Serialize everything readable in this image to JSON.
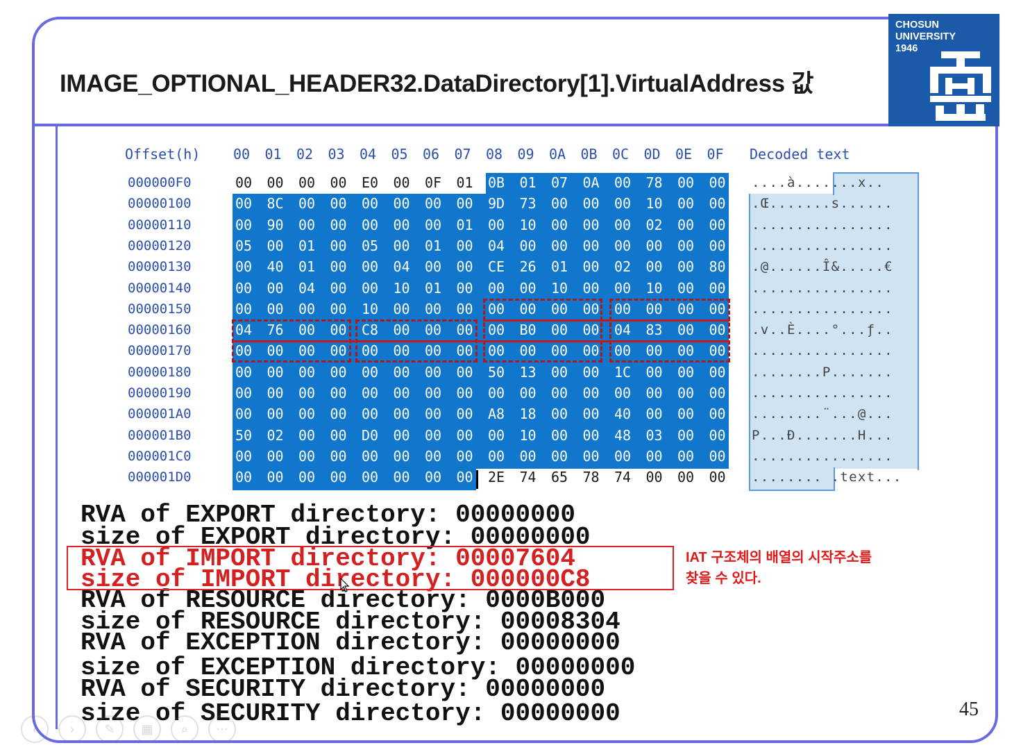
{
  "slide": {
    "title": "IMAGE_OPTIONAL_HEADER32.DataDirectory[1].VirtualAddress 값",
    "page_number": "45",
    "logo": {
      "line1": "CHOSUN",
      "line2": "UNIVERSITY",
      "line3": "1946"
    }
  },
  "hex_view": {
    "offset_header": "Offset(h)",
    "column_headers": [
      "00",
      "01",
      "02",
      "03",
      "04",
      "05",
      "06",
      "07",
      "08",
      "09",
      "0A",
      "0B",
      "0C",
      "0D",
      "0E",
      "0F"
    ],
    "decoded_header": "Decoded text",
    "rows": [
      {
        "offset": "000000F0",
        "bytes": [
          "00",
          "00",
          "00",
          "00",
          "E0",
          "00",
          "0F",
          "01",
          "0B",
          "01",
          "07",
          "0A",
          "00",
          "78",
          "00",
          "00"
        ],
        "decoded": "....à.......x.."
      },
      {
        "offset": "00000100",
        "bytes": [
          "00",
          "8C",
          "00",
          "00",
          "00",
          "00",
          "00",
          "00",
          "9D",
          "73",
          "00",
          "00",
          "00",
          "10",
          "00",
          "00"
        ],
        "decoded": ".Œ.......s......"
      },
      {
        "offset": "00000110",
        "bytes": [
          "00",
          "90",
          "00",
          "00",
          "00",
          "00",
          "00",
          "01",
          "00",
          "10",
          "00",
          "00",
          "00",
          "02",
          "00",
          "00"
        ],
        "decoded": "................"
      },
      {
        "offset": "00000120",
        "bytes": [
          "05",
          "00",
          "01",
          "00",
          "05",
          "00",
          "01",
          "00",
          "04",
          "00",
          "00",
          "00",
          "00",
          "00",
          "00",
          "00"
        ],
        "decoded": "................"
      },
      {
        "offset": "00000130",
        "bytes": [
          "00",
          "40",
          "01",
          "00",
          "00",
          "04",
          "00",
          "00",
          "CE",
          "26",
          "01",
          "00",
          "02",
          "00",
          "00",
          "80"
        ],
        "decoded": ".@......Î&.....€"
      },
      {
        "offset": "00000140",
        "bytes": [
          "00",
          "00",
          "04",
          "00",
          "00",
          "10",
          "01",
          "00",
          "00",
          "00",
          "10",
          "00",
          "00",
          "10",
          "00",
          "00"
        ],
        "decoded": "................"
      },
      {
        "offset": "00000150",
        "bytes": [
          "00",
          "00",
          "00",
          "00",
          "10",
          "00",
          "00",
          "00",
          "00",
          "00",
          "00",
          "00",
          "00",
          "00",
          "00",
          "00"
        ],
        "decoded": "................"
      },
      {
        "offset": "00000160",
        "bytes": [
          "04",
          "76",
          "00",
          "00",
          "C8",
          "00",
          "00",
          "00",
          "00",
          "B0",
          "00",
          "00",
          "04",
          "83",
          "00",
          "00"
        ],
        "decoded": ".v..È....°...ƒ.."
      },
      {
        "offset": "00000170",
        "bytes": [
          "00",
          "00",
          "00",
          "00",
          "00",
          "00",
          "00",
          "00",
          "00",
          "00",
          "00",
          "00",
          "00",
          "00",
          "00",
          "00"
        ],
        "decoded": "................"
      },
      {
        "offset": "00000180",
        "bytes": [
          "00",
          "00",
          "00",
          "00",
          "00",
          "00",
          "00",
          "00",
          "50",
          "13",
          "00",
          "00",
          "1C",
          "00",
          "00",
          "00"
        ],
        "decoded": "........P......."
      },
      {
        "offset": "00000190",
        "bytes": [
          "00",
          "00",
          "00",
          "00",
          "00",
          "00",
          "00",
          "00",
          "00",
          "00",
          "00",
          "00",
          "00",
          "00",
          "00",
          "00"
        ],
        "decoded": "................"
      },
      {
        "offset": "000001A0",
        "bytes": [
          "00",
          "00",
          "00",
          "00",
          "00",
          "00",
          "00",
          "00",
          "A8",
          "18",
          "00",
          "00",
          "40",
          "00",
          "00",
          "00"
        ],
        "decoded": "........¨...@..."
      },
      {
        "offset": "000001B0",
        "bytes": [
          "50",
          "02",
          "00",
          "00",
          "D0",
          "00",
          "00",
          "00",
          "00",
          "10",
          "00",
          "00",
          "48",
          "03",
          "00",
          "00"
        ],
        "decoded": "P...Ð.......H..."
      },
      {
        "offset": "000001C0",
        "bytes": [
          "00",
          "00",
          "00",
          "00",
          "00",
          "00",
          "00",
          "00",
          "00",
          "00",
          "00",
          "00",
          "00",
          "00",
          "00",
          "00"
        ],
        "decoded": "................"
      },
      {
        "offset": "000001D0",
        "bytes": [
          "00",
          "00",
          "00",
          "00",
          "00",
          "00",
          "00",
          "00",
          "2E",
          "74",
          "65",
          "78",
          "74",
          "00",
          "00",
          "00"
        ],
        "decoded": "........ .text..."
      }
    ]
  },
  "directories": [
    {
      "text": "RVA of EXPORT directory: 00000000",
      "highlight": false
    },
    {
      "text": "size of EXPORT directory: 00000000",
      "highlight": false
    },
    {
      "text": "RVA of IMPORT directory: 00007604",
      "highlight": true
    },
    {
      "text": "size of IMPORT directory: 000000C8",
      "highlight": true
    },
    {
      "text": "RVA of RESOURCE directory: 0000B000",
      "highlight": false
    },
    {
      "text": "size of RESOURCE directory: 00008304",
      "highlight": false
    },
    {
      "text": "RVA of EXCEPTION directory: 00000000",
      "highlight": false
    },
    {
      "text": "size of EXCEPTION directory: 00000000",
      "highlight": false
    },
    {
      "text": "RVA of SECURITY directory: 00000000",
      "highlight": false
    },
    {
      "text": "size of SECURITY directory: 00000000",
      "highlight": false
    }
  ],
  "note": {
    "line1": "IAT 구조체의 배열의 시작주소를",
    "line2": "찾을 수 있다."
  },
  "colors": {
    "frame": "#6a6ae0",
    "selection": "#1177cc",
    "highlight_red": "#d42020",
    "logo_bg": "#1a5aa8"
  },
  "controls": {
    "icons": [
      "prev-icon",
      "next-icon",
      "pen-icon",
      "slides-icon",
      "zoom-icon",
      "more-icon"
    ]
  }
}
